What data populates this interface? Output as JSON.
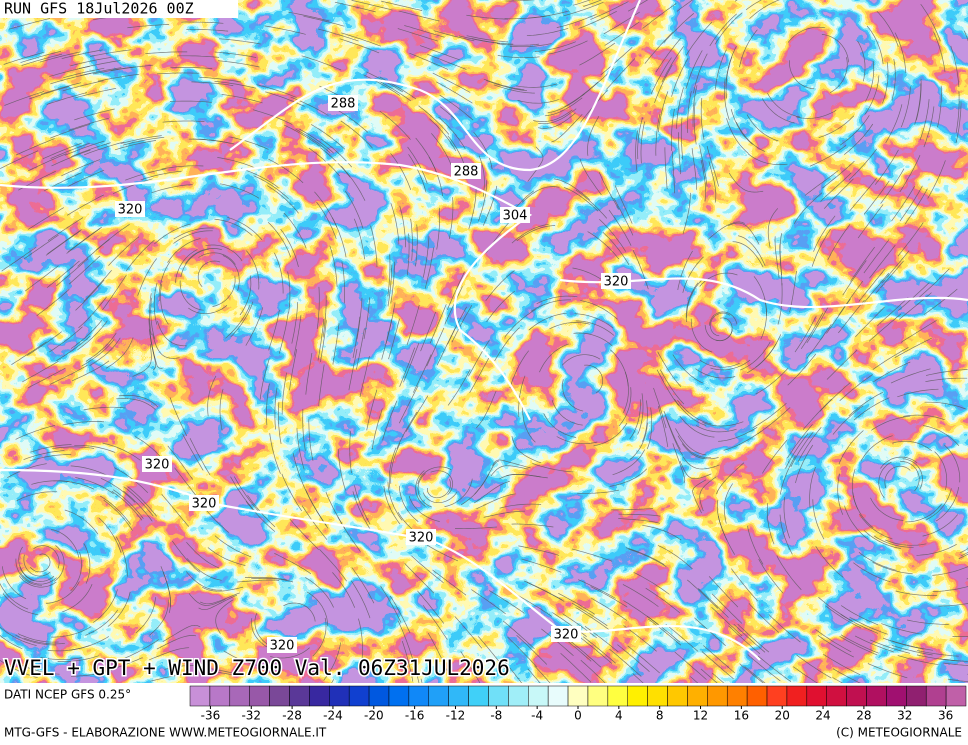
{
  "header": {
    "run": "RUN GFS 18Jul2026 00Z"
  },
  "map": {
    "title": "VVEL + GPT + WIND Z700 Val. 06Z31JUL2026",
    "contour_labels": [
      288,
      288,
      304,
      320,
      320,
      320,
      320,
      320,
      320,
      320
    ]
  },
  "colorbar": {
    "source": "DATI NCEP GFS 0.25°",
    "lim": [
      -38,
      38
    ],
    "ticks": [
      -36,
      -32,
      -28,
      -24,
      -20,
      -16,
      -12,
      -8,
      -4,
      0,
      4,
      8,
      12,
      16,
      20,
      24,
      28,
      32,
      36
    ],
    "colors": [
      "#c890d8",
      "#b878c8",
      "#a868b8",
      "#9858a8",
      "#7a4898",
      "#5a3898",
      "#3828a0",
      "#2030b8",
      "#1040d0",
      "#0058e0",
      "#0070f0",
      "#1088f8",
      "#20a0f8",
      "#30b8f8",
      "#40d0f8",
      "#70e0f8",
      "#a0eef8",
      "#c8f8f8",
      "#e8fcfc",
      "#ffffc0",
      "#ffff80",
      "#ffff40",
      "#fff000",
      "#ffe000",
      "#ffc800",
      "#ffb000",
      "#ff9800",
      "#ff8000",
      "#ff6000",
      "#ff4020",
      "#f02020",
      "#e01030",
      "#d01040",
      "#c01050",
      "#b01060",
      "#a01070",
      "#902070",
      "#b04090",
      "#c060a8"
    ]
  },
  "footer": {
    "credit": "MTG-GFS - ELABORAZIONE WWW.METEOGIORNALE.IT",
    "copyright": "(C) METEOGIORNALE"
  }
}
